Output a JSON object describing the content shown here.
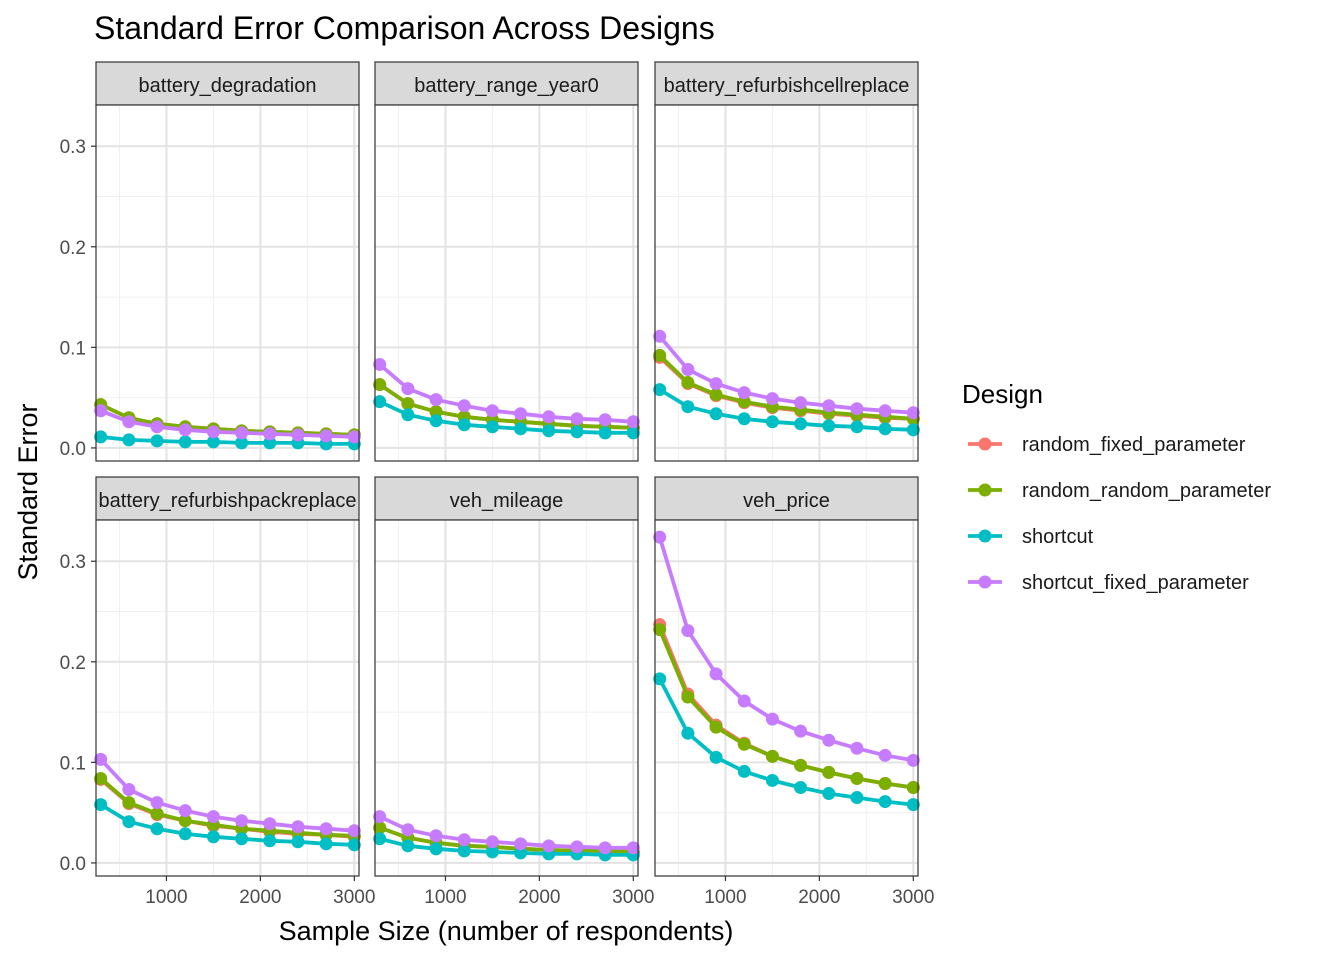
{
  "chart_data": {
    "type": "line",
    "title": "Standard Error Comparison Across Designs",
    "xlabel": "Sample Size (number of respondents)",
    "ylabel": "Standard Error",
    "xlim": [
      250,
      3050
    ],
    "ylim": [
      -0.013,
      0.341
    ],
    "x_ticks": [
      1000,
      2000,
      3000
    ],
    "x_tick_labels": [
      "1000",
      "2000",
      "3000"
    ],
    "y_ticks": [
      0,
      0.1,
      0.2,
      0.3
    ],
    "y_tick_labels": [
      "0.0",
      "0.1",
      "0.2",
      "0.3"
    ],
    "grid": true,
    "legend": {
      "title": "Design",
      "position": "right",
      "entries": [
        {
          "name": "random_fixed_parameter",
          "color": "#F8766D"
        },
        {
          "name": "random_random_parameter",
          "color": "#7CAE00"
        },
        {
          "name": "shortcut",
          "color": "#00BFC4"
        },
        {
          "name": "shortcut_fixed_parameter",
          "color": "#C77CFF"
        }
      ]
    },
    "x": [
      300,
      600,
      900,
      1200,
      1500,
      1800,
      2100,
      2400,
      2700,
      3000
    ],
    "panels": [
      {
        "strip": "battery_degradation",
        "series": [
          {
            "name": "random_fixed_parameter",
            "values": [
              0.043,
              0.03,
              0.024,
              0.021,
              0.019,
              0.017,
              0.016,
              0.015,
              0.014,
              0.013
            ]
          },
          {
            "name": "random_random_parameter",
            "values": [
              0.043,
              0.03,
              0.024,
              0.021,
              0.019,
              0.017,
              0.016,
              0.015,
              0.014,
              0.013
            ]
          },
          {
            "name": "shortcut",
            "values": [
              0.011,
              0.008,
              0.007,
              0.006,
              0.006,
              0.005,
              0.005,
              0.005,
              0.004,
              0.004
            ]
          },
          {
            "name": "shortcut_fixed_parameter",
            "values": [
              0.037,
              0.026,
              0.021,
              0.018,
              0.016,
              0.015,
              0.014,
              0.013,
              0.012,
              0.011
            ]
          }
        ]
      },
      {
        "strip": "battery_range_year0",
        "series": [
          {
            "name": "random_fixed_parameter",
            "values": [
              0.063,
              0.044,
              0.036,
              0.031,
              0.028,
              0.026,
              0.024,
              0.022,
              0.021,
              0.02
            ]
          },
          {
            "name": "random_random_parameter",
            "values": [
              0.063,
              0.044,
              0.036,
              0.031,
              0.028,
              0.026,
              0.024,
              0.022,
              0.021,
              0.02
            ]
          },
          {
            "name": "shortcut",
            "values": [
              0.046,
              0.033,
              0.027,
              0.023,
              0.021,
              0.019,
              0.017,
              0.016,
              0.015,
              0.015
            ]
          },
          {
            "name": "shortcut_fixed_parameter",
            "values": [
              0.083,
              0.059,
              0.048,
              0.042,
              0.037,
              0.034,
              0.031,
              0.029,
              0.028,
              0.026
            ]
          }
        ]
      },
      {
        "strip": "battery_refurbishcellreplace",
        "series": [
          {
            "name": "random_fixed_parameter",
            "values": [
              0.09,
              0.064,
              0.052,
              0.045,
              0.04,
              0.037,
              0.034,
              0.032,
              0.03,
              0.029
            ]
          },
          {
            "name": "random_random_parameter",
            "values": [
              0.092,
              0.065,
              0.053,
              0.046,
              0.041,
              0.038,
              0.035,
              0.033,
              0.031,
              0.029
            ]
          },
          {
            "name": "shortcut",
            "values": [
              0.058,
              0.041,
              0.034,
              0.029,
              0.026,
              0.024,
              0.022,
              0.021,
              0.019,
              0.018
            ]
          },
          {
            "name": "shortcut_fixed_parameter",
            "values": [
              0.111,
              0.078,
              0.064,
              0.055,
              0.049,
              0.045,
              0.042,
              0.039,
              0.037,
              0.035
            ]
          }
        ]
      },
      {
        "strip": "battery_refurbishpackreplace",
        "series": [
          {
            "name": "random_fixed_parameter",
            "values": [
              0.083,
              0.059,
              0.048,
              0.042,
              0.037,
              0.034,
              0.031,
              0.029,
              0.028,
              0.026
            ]
          },
          {
            "name": "random_random_parameter",
            "values": [
              0.084,
              0.06,
              0.049,
              0.042,
              0.038,
              0.034,
              0.032,
              0.03,
              0.028,
              0.027
            ]
          },
          {
            "name": "shortcut",
            "values": [
              0.058,
              0.041,
              0.034,
              0.029,
              0.026,
              0.024,
              0.022,
              0.021,
              0.019,
              0.018
            ]
          },
          {
            "name": "shortcut_fixed_parameter",
            "values": [
              0.103,
              0.073,
              0.06,
              0.052,
              0.046,
              0.042,
              0.039,
              0.036,
              0.034,
              0.032
            ]
          }
        ]
      },
      {
        "strip": "veh_mileage",
        "series": [
          {
            "name": "random_fixed_parameter",
            "values": [
              0.035,
              0.025,
              0.02,
              0.017,
              0.016,
              0.014,
              0.013,
              0.012,
              0.012,
              0.011
            ]
          },
          {
            "name": "random_random_parameter",
            "values": [
              0.035,
              0.025,
              0.02,
              0.017,
              0.016,
              0.014,
              0.013,
              0.012,
              0.012,
              0.011
            ]
          },
          {
            "name": "shortcut",
            "values": [
              0.024,
              0.017,
              0.014,
              0.012,
              0.011,
              0.01,
              0.009,
              0.009,
              0.008,
              0.008
            ]
          },
          {
            "name": "shortcut_fixed_parameter",
            "values": [
              0.046,
              0.033,
              0.027,
              0.023,
              0.021,
              0.019,
              0.017,
              0.016,
              0.015,
              0.015
            ]
          }
        ]
      },
      {
        "strip": "veh_price",
        "series": [
          {
            "name": "random_fixed_parameter",
            "values": [
              0.237,
              0.168,
              0.137,
              0.119,
              0.106,
              0.097,
              0.09,
              0.084,
              0.079,
              0.075
            ]
          },
          {
            "name": "random_random_parameter",
            "values": [
              0.232,
              0.165,
              0.135,
              0.118,
              0.106,
              0.097,
              0.09,
              0.084,
              0.079,
              0.075
            ]
          },
          {
            "name": "shortcut",
            "values": [
              0.183,
              0.129,
              0.105,
              0.091,
              0.082,
              0.075,
              0.069,
              0.065,
              0.061,
              0.058
            ]
          },
          {
            "name": "shortcut_fixed_parameter",
            "values": [
              0.324,
              0.231,
              0.188,
              0.161,
              0.143,
              0.131,
              0.122,
              0.114,
              0.107,
              0.102
            ]
          }
        ]
      }
    ]
  }
}
